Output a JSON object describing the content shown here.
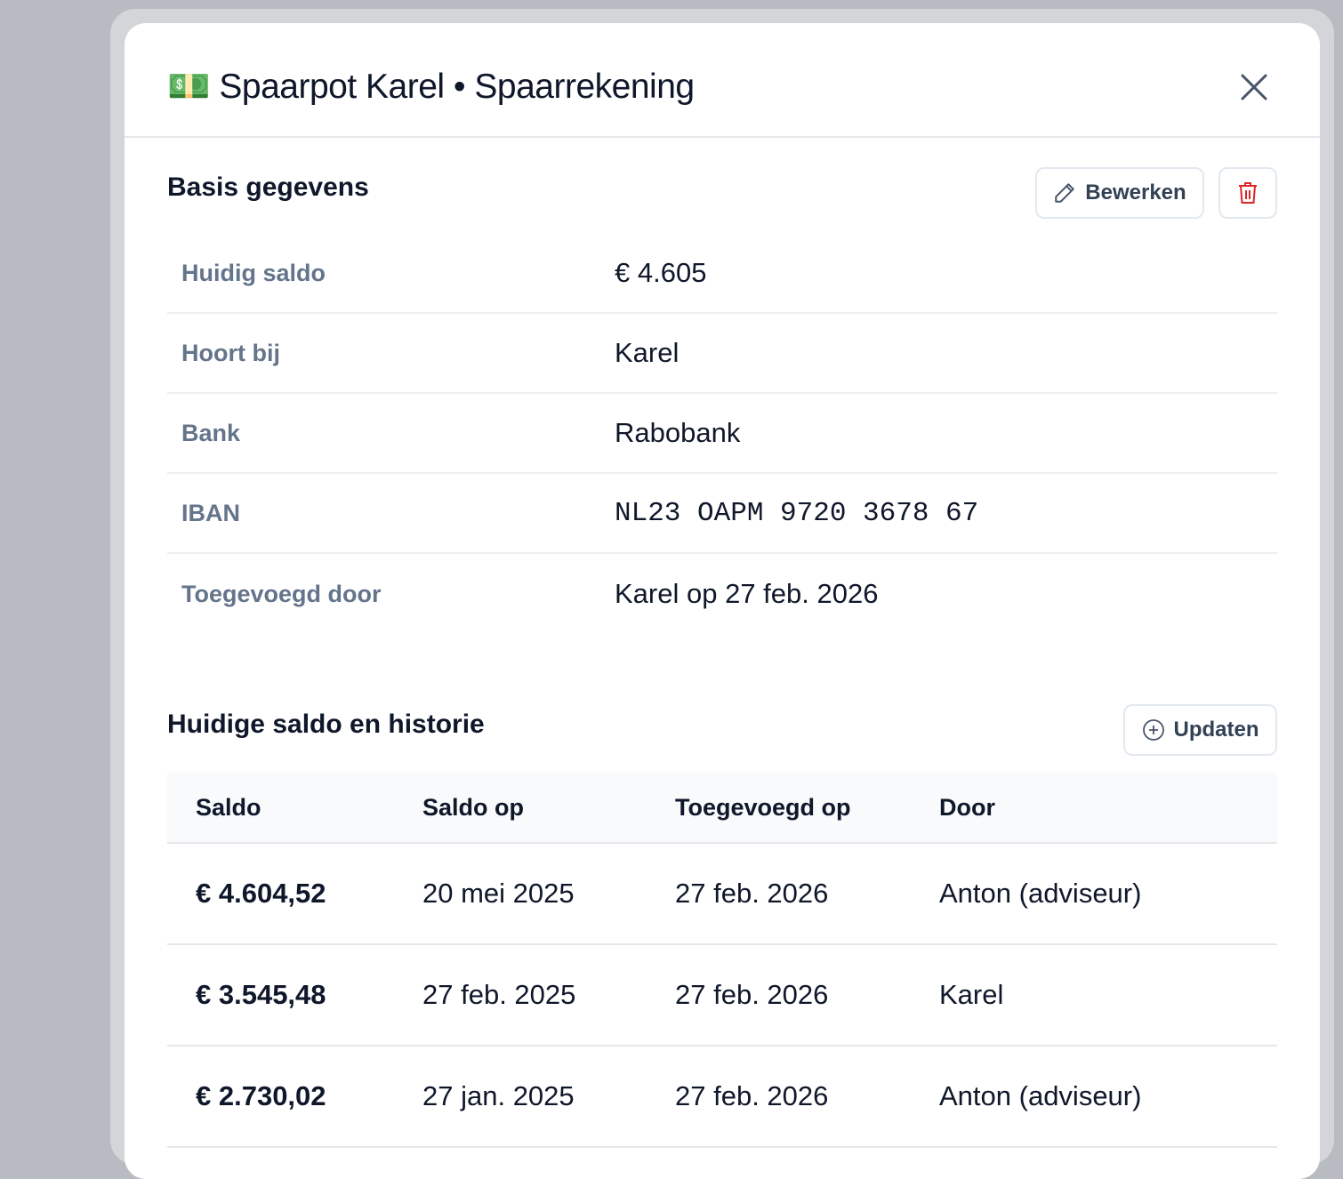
{
  "header": {
    "icon": "💵",
    "title": "Spaarpot Karel • Spaarrekening"
  },
  "basis": {
    "title": "Basis gegevens",
    "edit_button": "Bewerken",
    "rows": [
      [
        "Huidig saldo",
        "€ 4.605"
      ],
      [
        "Hoort bij",
        "Karel"
      ],
      [
        "Bank",
        "Rabobank"
      ],
      [
        "IBAN",
        "NL23 OAPM 9720 3678 67"
      ],
      [
        "Toegevoegd door",
        "Karel op 27 feb. 2026"
      ]
    ]
  },
  "history": {
    "title": "Huidige saldo en historie",
    "update_button": "Updaten",
    "table": {
      "columns": [
        "Saldo",
        "Saldo op",
        "Toegevoegd op",
        "Door"
      ],
      "rows": [
        [
          "€ 4.604,52",
          "20 mei 2025",
          "27 feb. 2026",
          "Anton (adviseur)"
        ],
        [
          "€ 3.545,48",
          "27 feb. 2025",
          "27 feb. 2026",
          "Karel"
        ],
        [
          "€ 2.730,02",
          "27 jan. 2025",
          "27 feb. 2026",
          "Anton (adviseur)"
        ]
      ]
    }
  }
}
